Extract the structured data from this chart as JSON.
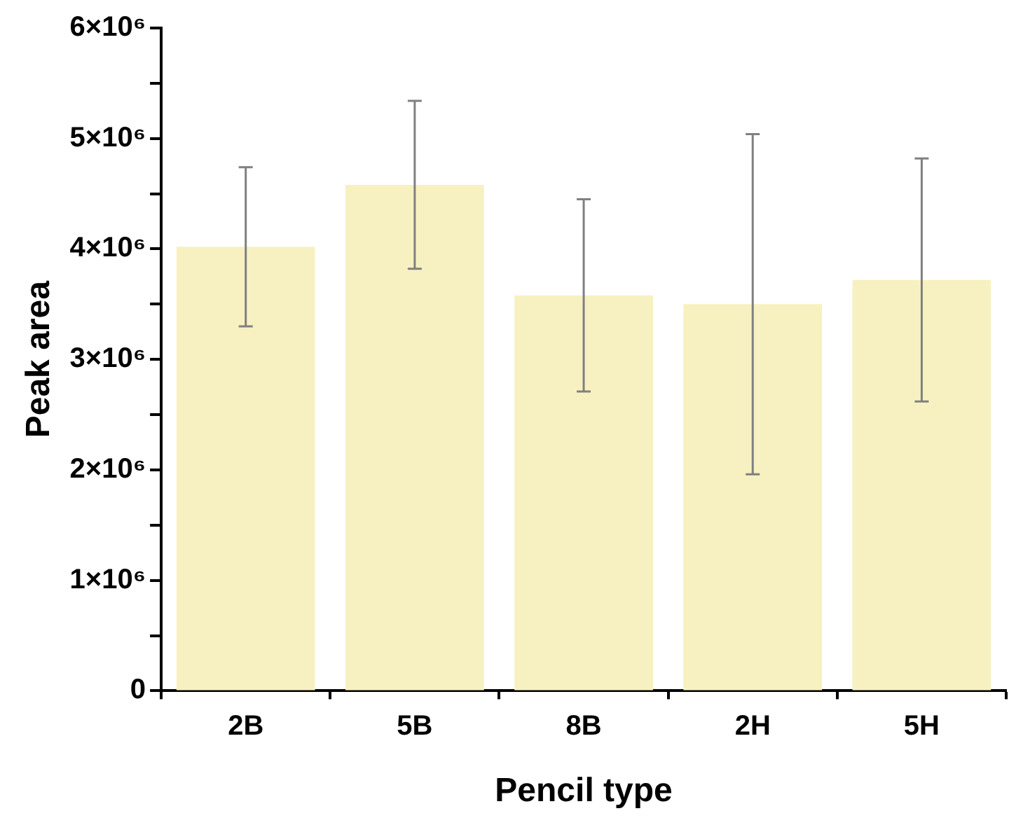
{
  "chart_data": {
    "type": "bar",
    "xlabel": "Pencil type",
    "ylabel": "Peak area",
    "categories": [
      "2B",
      "5B",
      "8B",
      "2H",
      "5H"
    ],
    "values": [
      4020000,
      4580000,
      3580000,
      3500000,
      3720000
    ],
    "errors": [
      720000,
      760000,
      870000,
      1540000,
      1100000
    ],
    "color": "#f7f1c1",
    "ylim": [
      0,
      6000000
    ],
    "yticks": [
      0,
      {
        "value": 500000,
        "label": null
      },
      {
        "value": 1000000,
        "label": "1×10⁶"
      },
      {
        "value": 1500000,
        "label": null
      },
      {
        "value": 2000000,
        "label": "2×10⁶"
      },
      {
        "value": 2500000,
        "label": null
      },
      {
        "value": 3000000,
        "label": "3×10⁶"
      },
      {
        "value": 3500000,
        "label": null
      },
      {
        "value": 4000000,
        "label": "4×10⁶"
      },
      {
        "value": 4500000,
        "label": null
      },
      {
        "value": 5000000,
        "label": "5×10⁶"
      },
      {
        "value": 5500000,
        "label": null
      },
      {
        "value": 6000000,
        "label": "6×10⁶"
      }
    ],
    "grid": false,
    "legend": false
  }
}
